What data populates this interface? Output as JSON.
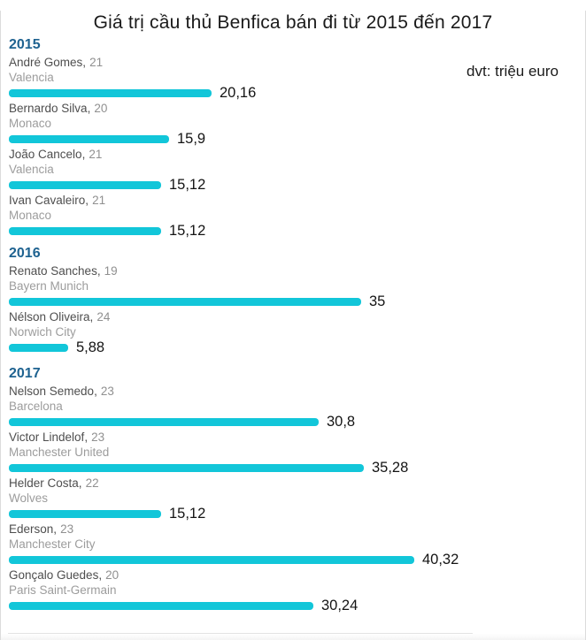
{
  "header": {
    "title": "Giá trị cầu thủ Benfica bán đi từ 2015 đến 2017",
    "unit_note": "dvt: triệu euro"
  },
  "colors": {
    "bar": "#12c6d9",
    "year_label": "#1e6290",
    "player_name": "#4e4e4e",
    "player_age": "#909090",
    "club": "#9c9c9c",
    "value_label": "#141414",
    "title": "#1a1a1a"
  },
  "chart_data": {
    "type": "bar",
    "orientation": "horizontal",
    "title": "Giá trị cầu thủ Benfica bán đi từ 2015 đến 2017",
    "unit_note": "dvt: triệu euro",
    "value_axis_range": [
      0,
      40.32
    ],
    "grid": false,
    "legend": false,
    "groups": [
      {
        "year": "2015",
        "players": [
          {
            "name": "André Gomes",
            "age": "21",
            "club": "Valencia",
            "value": 20.16,
            "value_label": "20,16"
          },
          {
            "name": "Bernardo Silva",
            "age": "20",
            "club": "Monaco",
            "value": 15.9,
            "value_label": "15,9"
          },
          {
            "name": "João Cancelo",
            "age": "21",
            "club": "Valencia",
            "value": 15.12,
            "value_label": "15,12"
          },
          {
            "name": "Ivan Cavaleiro",
            "age": "21",
            "club": "Monaco",
            "value": 15.12,
            "value_label": "15,12"
          }
        ]
      },
      {
        "year": "2016",
        "players": [
          {
            "name": "Renato Sanches",
            "age": "19",
            "club": "Bayern Munich",
            "value": 35,
            "value_label": "35"
          },
          {
            "name": "Nélson Oliveira",
            "age": "24",
            "club": "Norwich City",
            "value": 5.88,
            "value_label": "5,88"
          }
        ]
      },
      {
        "year": "2017",
        "players": [
          {
            "name": "Nelson Semedo",
            "age": "23",
            "club": "Barcelona",
            "value": 30.8,
            "value_label": "30,8"
          },
          {
            "name": "Victor Lindelof",
            "age": "23",
            "club": "Manchester United",
            "value": 35.28,
            "value_label": "35,28"
          },
          {
            "name": "Helder Costa",
            "age": "22",
            "club": "Wolves",
            "value": 15.12,
            "value_label": "15,12"
          },
          {
            "name": "Ederson",
            "age": "23",
            "club": "Manchester City",
            "value": 40.32,
            "value_label": "40,32"
          },
          {
            "name": "Gonçalo Guedes",
            "age": "20",
            "club": "Paris Saint-Germain",
            "value": 30.24,
            "value_label": "30,24"
          }
        ]
      }
    ]
  }
}
